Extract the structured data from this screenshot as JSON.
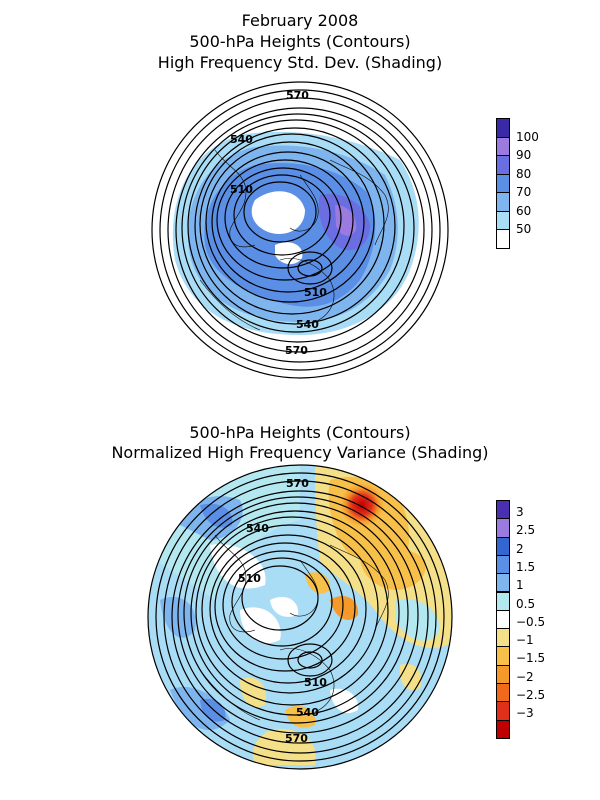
{
  "panel_top": {
    "title_lines": [
      "February 2008",
      "500-hPa Heights (Contours)",
      "High Frequency Std. Dev. (Shading)"
    ],
    "colorbar": {
      "colors": [
        "#ffffff",
        "#a9dcf5",
        "#7fb5ef",
        "#5b8fe6",
        "#6a6ee0",
        "#9b7be0",
        "#3a2aa8"
      ],
      "labels": [
        "50",
        "60",
        "70",
        "80",
        "90",
        "100"
      ]
    },
    "contour_labels": [
      "570",
      "540",
      "510",
      "510",
      "540",
      "570"
    ]
  },
  "panel_bottom": {
    "title_lines": [
      "500-hPa Heights (Contours)",
      "Normalized High Frequency Variance (Shading)"
    ],
    "colorbar": {
      "colors": [
        "#4a30b0",
        "#9b7be0",
        "#3366d0",
        "#5b8fe6",
        "#7fb5ef",
        "#b4e8f0",
        "#ffffff",
        "#f5e08a",
        "#f7c04a",
        "#f59a2a",
        "#f06a1a",
        "#e0301a",
        "#c00000"
      ],
      "labels": [
        "3",
        "2.5",
        "2",
        "1.5",
        "1",
        "0.5",
        "−0.5",
        "−1",
        "−1.5",
        "−2",
        "−2.5",
        "−3"
      ]
    },
    "contour_labels": [
      "570",
      "540",
      "510",
      "510",
      "540",
      "570"
    ]
  }
}
